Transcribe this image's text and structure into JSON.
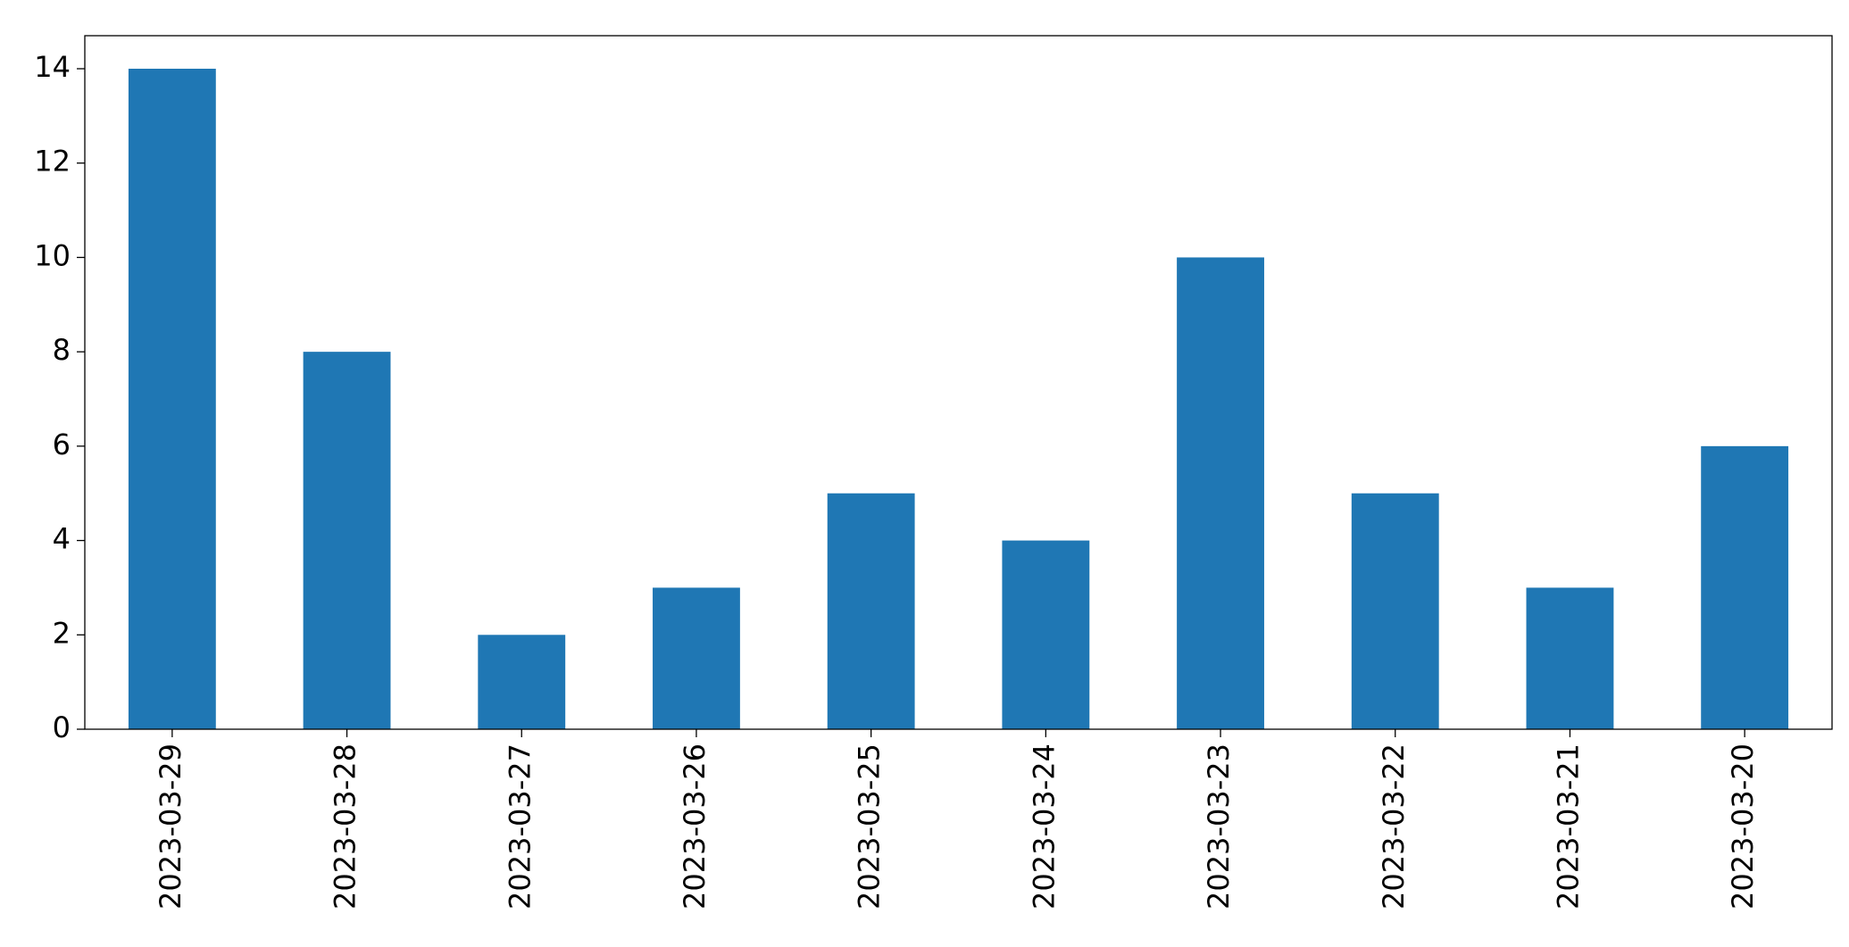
{
  "chart_data": {
    "type": "bar",
    "categories": [
      "2023-03-29",
      "2023-03-28",
      "2023-03-27",
      "2023-03-26",
      "2023-03-25",
      "2023-03-24",
      "2023-03-23",
      "2023-03-22",
      "2023-03-21",
      "2023-03-20"
    ],
    "values": [
      14,
      8,
      2,
      3,
      5,
      4,
      10,
      5,
      3,
      6
    ],
    "color": "#1f77b4",
    "ylim": [
      0,
      14.7
    ],
    "yticks": [
      0,
      2,
      4,
      6,
      8,
      10,
      12,
      14
    ],
    "grid": false
  }
}
